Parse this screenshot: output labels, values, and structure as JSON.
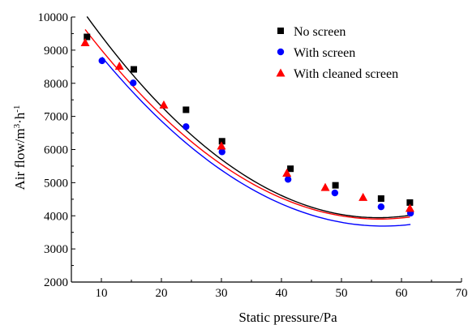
{
  "chart_data": {
    "type": "scatter",
    "title": "",
    "xlabel": "Static pressure/Pa",
    "ylabel_main": "Air flow/m",
    "ylabel_sup1": "3",
    "ylabel_mid": "·h",
    "ylabel_sup2": "-1",
    "xlim": [
      5,
      70
    ],
    "ylim": [
      2000,
      10000
    ],
    "xticks": [
      10,
      20,
      30,
      40,
      50,
      60,
      70
    ],
    "yticks": [
      2000,
      3000,
      4000,
      5000,
      6000,
      7000,
      8000,
      9000,
      10000
    ],
    "grid": false,
    "legend_position": "top-right",
    "series": [
      {
        "name": "No screen",
        "marker": "square",
        "color": "#000000",
        "x": [
          7.6,
          15.4,
          24.1,
          30.1,
          41.5,
          49.0,
          56.6,
          61.4
        ],
        "y": [
          9400,
          8420,
          7200,
          6250,
          5420,
          4920,
          4520,
          4400
        ],
        "fit_coeffs": [
          12064.2,
          -289.5,
          2.58
        ]
      },
      {
        "name": "With screen",
        "marker": "circle",
        "color": "#0000ff",
        "x": [
          10.1,
          15.3,
          24.1,
          30.1,
          41.1,
          48.9,
          56.6,
          61.5
        ],
        "y": [
          8680,
          8010,
          6690,
          5930,
          5100,
          4690,
          4270,
          4080
        ],
        "fit_coeffs": [
          11223.1,
          -264.4,
          2.32
        ]
      },
      {
        "name": "With cleaned screen",
        "marker": "triangle",
        "color": "#ff0000",
        "x": [
          7.3,
          13.0,
          20.4,
          30.0,
          40.9,
          47.3,
          53.6,
          61.4
        ],
        "y": [
          9230,
          8520,
          7350,
          6110,
          5290,
          4860,
          4560,
          4230
        ],
        "fit_coeffs": [
          11451.7,
          -268.1,
          2.38
        ]
      }
    ]
  }
}
